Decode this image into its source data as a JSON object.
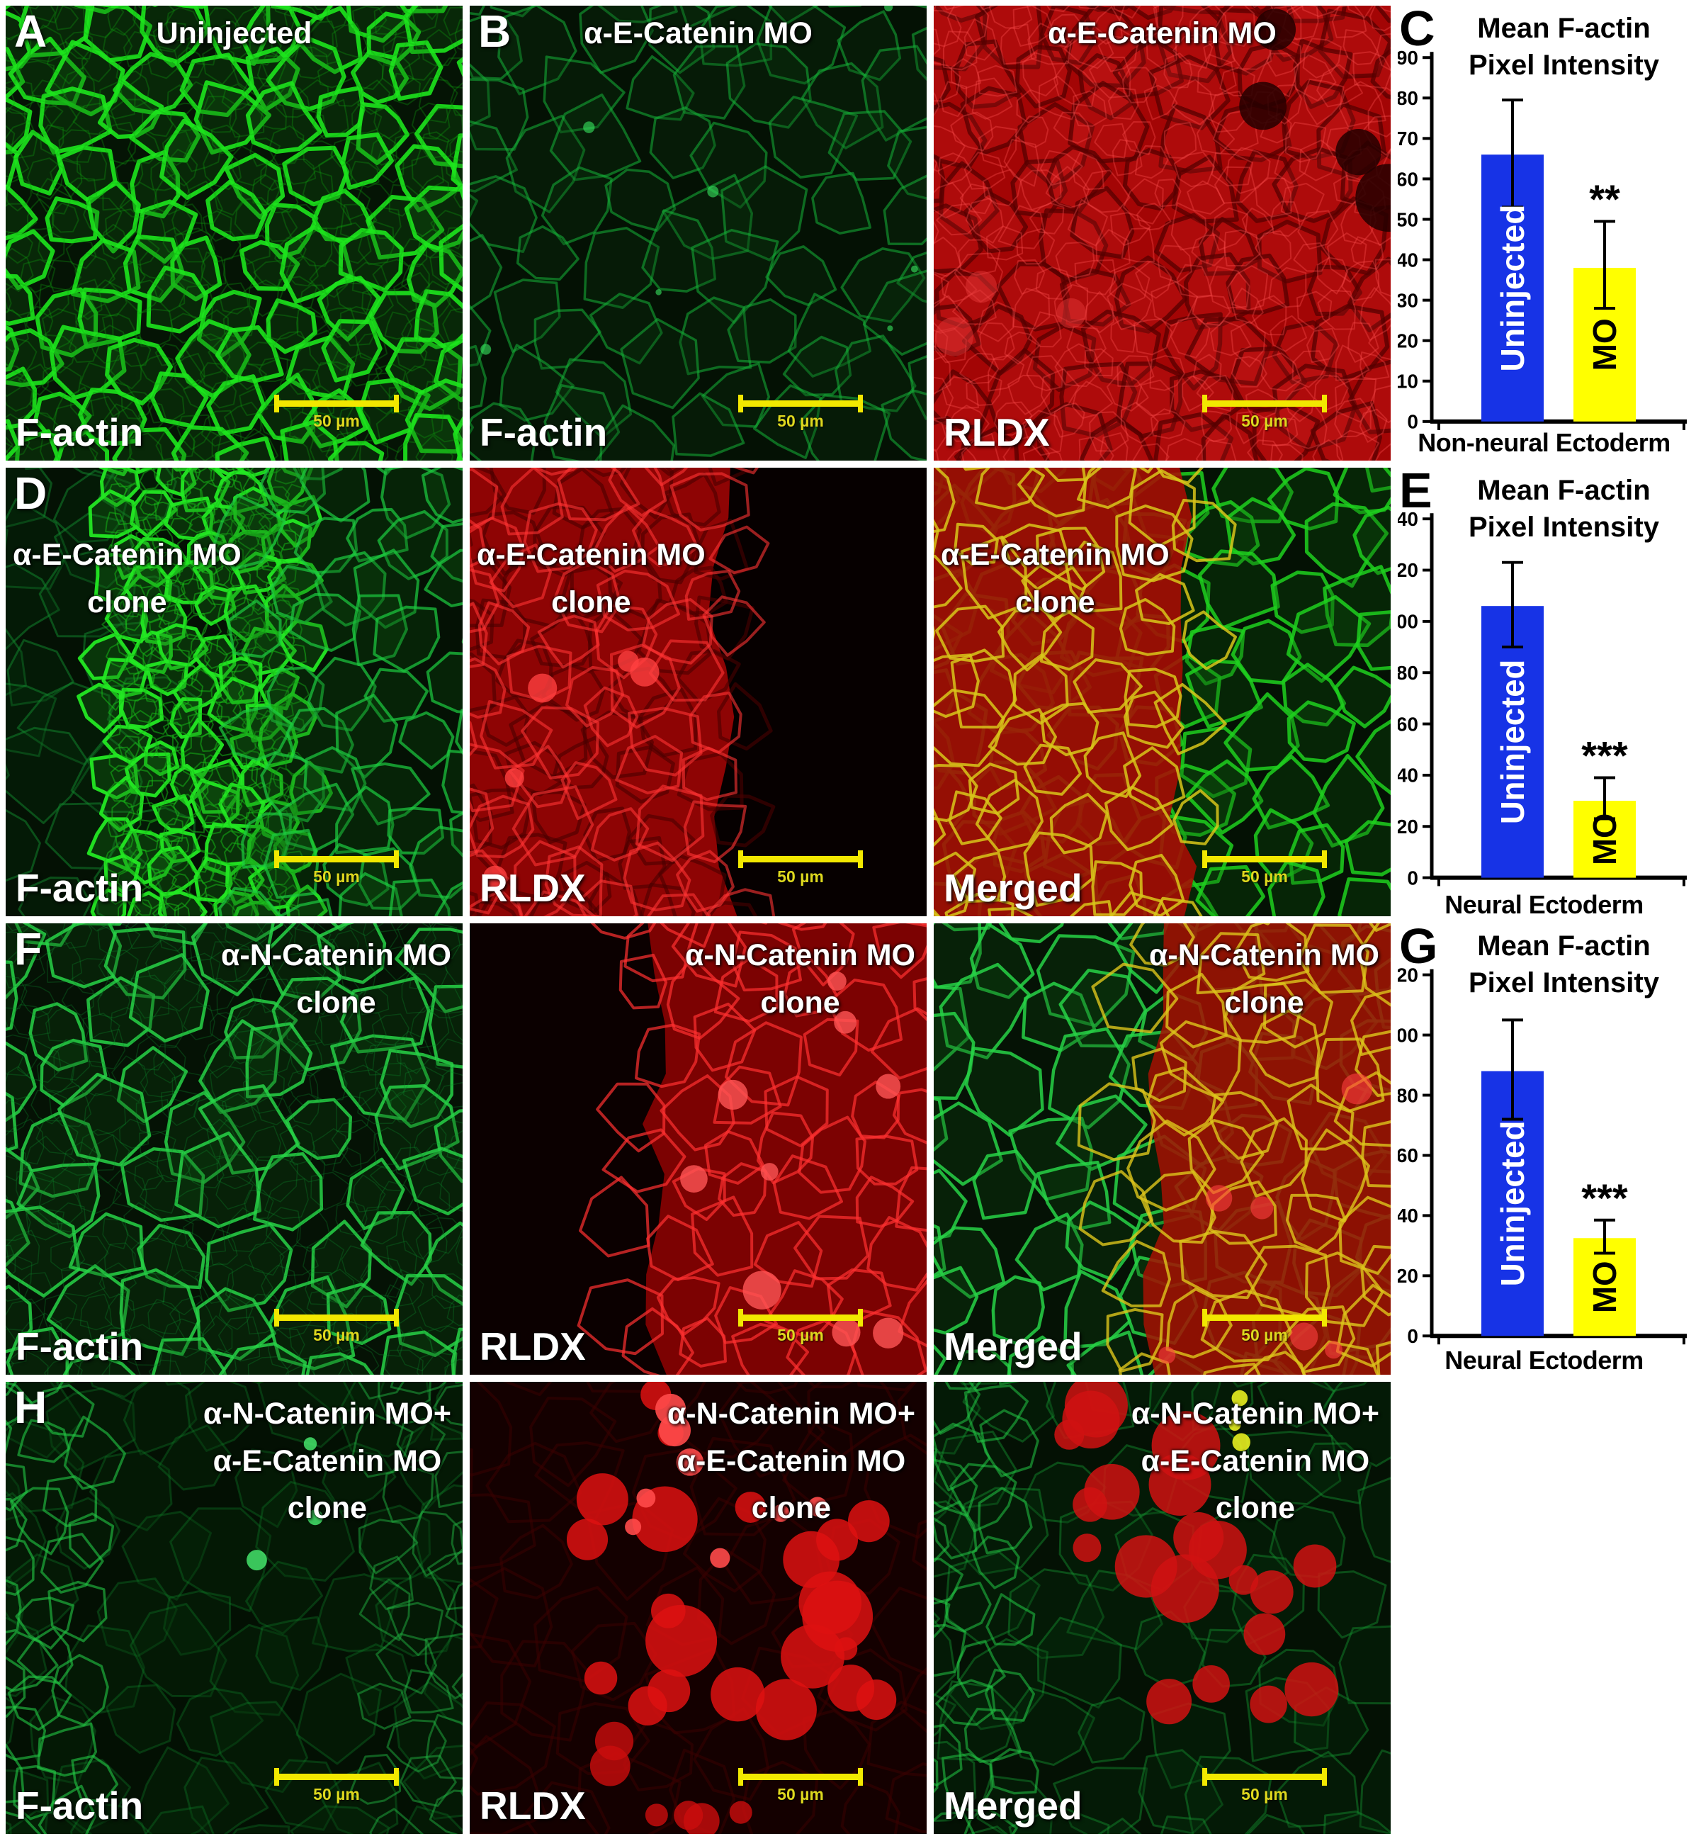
{
  "figure": {
    "background": "#ffffff",
    "scale_bar_color": "#f2e800"
  },
  "panels": [
    {
      "panel_letter": "A",
      "top_lines": [
        "Uninjected"
      ],
      "label_pos": "top-center",
      "bottom_label": "F-actin",
      "scalebar_label": "50 µm",
      "appearance": "green_bright"
    },
    {
      "panel_letter": "B",
      "top_lines": [
        "α-E-Catenin MO"
      ],
      "label_pos": "top-center",
      "bottom_label": "F-actin",
      "scalebar_label": "50 µm",
      "appearance": "green_dim"
    },
    {
      "panel_letter": "",
      "top_lines": [
        "α-E-Catenin MO"
      ],
      "label_pos": "top-center",
      "bottom_label": "RLDX",
      "scalebar_label": "50 µm",
      "appearance": "red_full"
    },
    {
      "panel_letter": "D",
      "top_lines": [
        "α-E-Catenin MO",
        "clone"
      ],
      "label_pos": "left-upper",
      "bottom_label": "F-actin",
      "scalebar_label": "50 µm",
      "appearance": "d_factin"
    },
    {
      "panel_letter": "",
      "top_lines": [
        "α-E-Catenin MO",
        "clone"
      ],
      "label_pos": "left-upper",
      "bottom_label": "RLDX",
      "scalebar_label": "50 µm",
      "appearance": "d_rldx"
    },
    {
      "panel_letter": "",
      "top_lines": [
        "α-E-Catenin MO",
        "clone"
      ],
      "label_pos": "left-upper",
      "bottom_label": "Merged",
      "scalebar_label": "50 µm",
      "appearance": "d_merged"
    },
    {
      "panel_letter": "F",
      "top_lines": [
        "α-N-Catenin MO",
        "clone"
      ],
      "label_pos": "top-right",
      "bottom_label": "F-actin",
      "scalebar_label": "50 µm",
      "appearance": "f_factin"
    },
    {
      "panel_letter": "",
      "top_lines": [
        "α-N-Catenin MO",
        "clone"
      ],
      "label_pos": "top-right",
      "bottom_label": "RLDX",
      "scalebar_label": "50 µm",
      "appearance": "f_rldx"
    },
    {
      "panel_letter": "",
      "top_lines": [
        "α-N-Catenin MO",
        "clone"
      ],
      "label_pos": "top-right",
      "bottom_label": "Merged",
      "scalebar_label": "50 µm",
      "appearance": "f_merged"
    },
    {
      "panel_letter": "H",
      "top_lines": [
        "α-N-Catenin MO+",
        "α-E-Catenin MO",
        "clone"
      ],
      "label_pos": "top-right",
      "bottom_label": "F-actin",
      "scalebar_label": "50 µm",
      "appearance": "h_factin"
    },
    {
      "panel_letter": "",
      "top_lines": [
        "α-N-Catenin MO+",
        "α-E-Catenin MO",
        "clone"
      ],
      "label_pos": "top-right",
      "bottom_label": "RLDX",
      "scalebar_label": "50 µm",
      "appearance": "h_rldx"
    },
    {
      "panel_letter": "",
      "top_lines": [
        "α-N-Catenin MO+",
        "α-E-Catenin MO",
        "clone"
      ],
      "label_pos": "top-right",
      "bottom_label": "Merged",
      "scalebar_label": "50 µm",
      "appearance": "h_merged"
    }
  ],
  "chart_data": [
    {
      "type": "bar",
      "panel_letter": "C",
      "title": "Mean F-actin Pixel Intensity",
      "title_lines": [
        "Mean F-actin",
        "Pixel Intensity"
      ],
      "xlabel": "Non-neural Ectoderm",
      "ylabel": "",
      "categories": [
        "Uninjected",
        "MO"
      ],
      "values": [
        66,
        38
      ],
      "error_low": [
        53,
        28
      ],
      "error_high": [
        79.5,
        49.5
      ],
      "significance": [
        "",
        "**"
      ],
      "bar_colors": [
        "#1733e6",
        "#ffff00"
      ],
      "bar_label_colors": [
        "#ffffff",
        "#000000"
      ],
      "ylim": [
        0,
        90
      ],
      "ytick_step": 10,
      "grid": false,
      "legend": "none"
    },
    {
      "type": "bar",
      "panel_letter": "E",
      "title": "Mean F-actin Pixel Intensity",
      "title_lines": [
        "Mean F-actin",
        "Pixel Intensity"
      ],
      "xlabel": "Neural Ectoderm",
      "ylabel": "",
      "categories": [
        "Uninjected",
        "MO"
      ],
      "values": [
        106,
        30
      ],
      "error_low": [
        90,
        23
      ],
      "error_high": [
        123,
        39
      ],
      "significance": [
        "",
        "***"
      ],
      "bar_colors": [
        "#1733e6",
        "#ffff00"
      ],
      "bar_label_colors": [
        "#ffffff",
        "#000000"
      ],
      "ylim": [
        0,
        140
      ],
      "ytick_step": 20,
      "grid": false,
      "legend": "none"
    },
    {
      "type": "bar",
      "panel_letter": "G",
      "title": "Mean F-actin Pixel Intensity",
      "title_lines": [
        "Mean F-actin",
        "Pixel Intensity"
      ],
      "xlabel": "Neural Ectoderm",
      "ylabel": "",
      "categories": [
        "Uninjected",
        "MO"
      ],
      "values": [
        88,
        32.5
      ],
      "error_low": [
        72,
        27.5
      ],
      "error_high": [
        105,
        38.5
      ],
      "significance": [
        "",
        "***"
      ],
      "bar_colors": [
        "#1733e6",
        "#ffff00"
      ],
      "bar_label_colors": [
        "#ffffff",
        "#000000"
      ],
      "ylim": [
        0,
        120
      ],
      "ytick_step": 20,
      "grid": false,
      "legend": "none"
    }
  ]
}
